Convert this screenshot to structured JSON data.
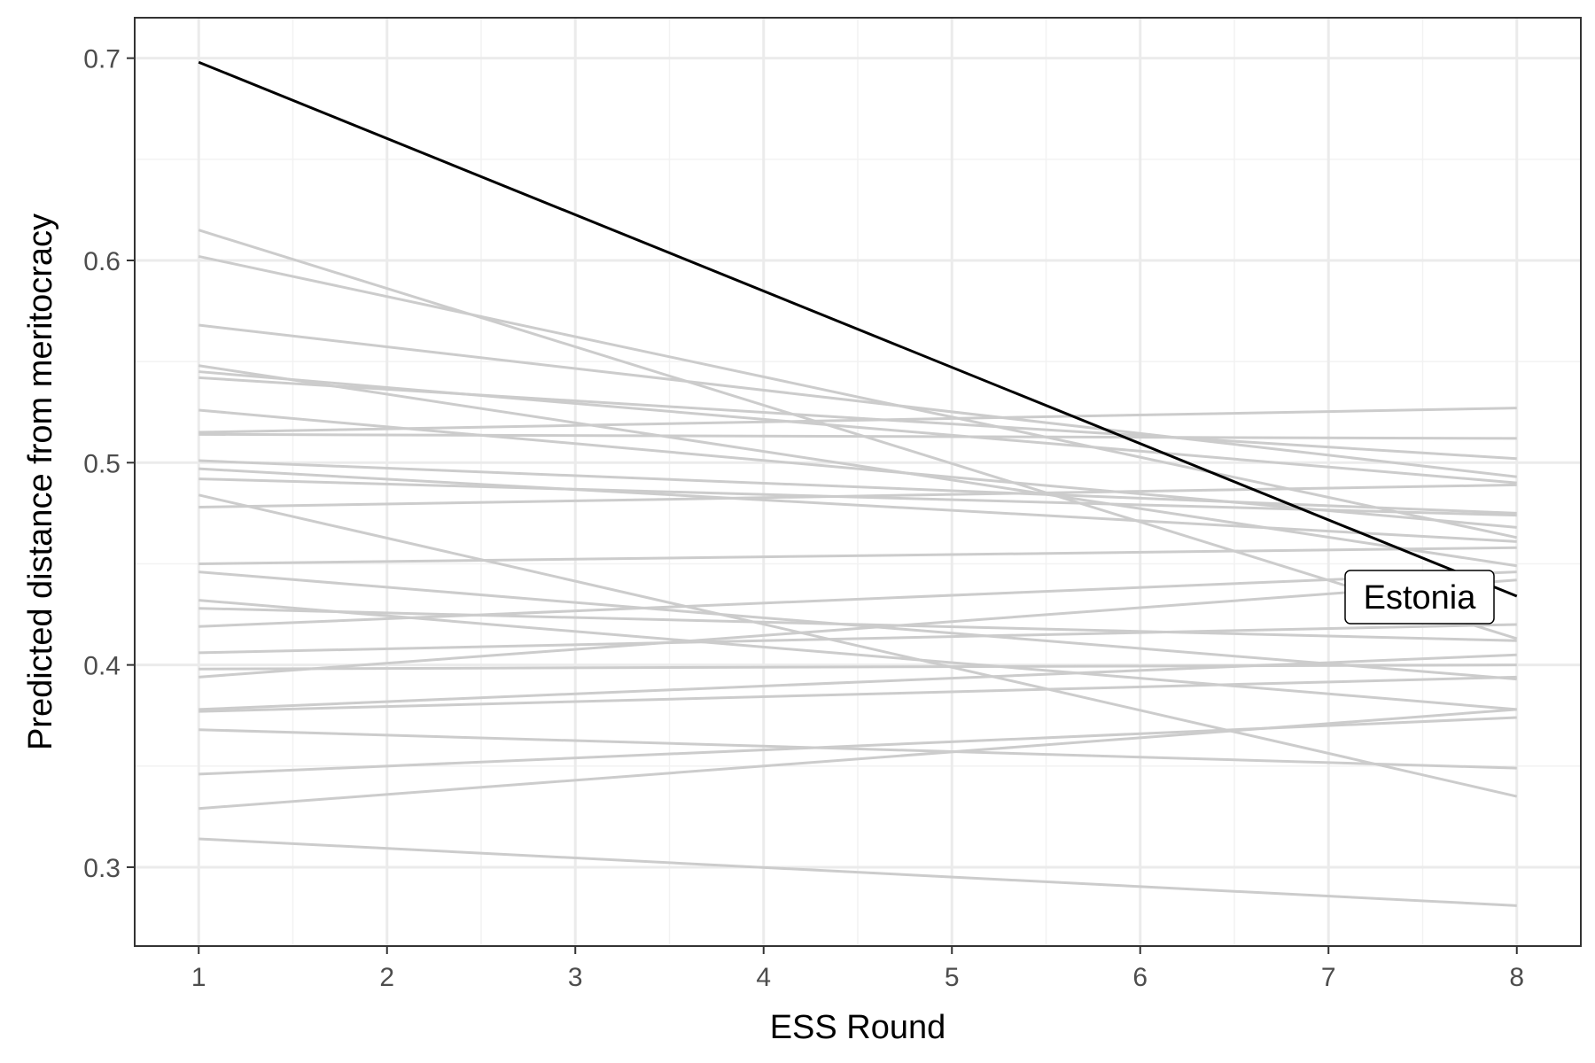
{
  "chart_data": {
    "type": "line",
    "title": "",
    "xlabel": "ESS Round",
    "ylabel": "Predicted distance from meritocracy",
    "xlim": [
      0.66,
      8.34
    ],
    "ylim": [
      0.261,
      0.72
    ],
    "x_ticks": [
      1,
      2,
      3,
      4,
      5,
      6,
      7,
      8
    ],
    "x_tick_labels": [
      "1",
      "2",
      "3",
      "4",
      "5",
      "6",
      "7",
      "8"
    ],
    "y_ticks": [
      0.3,
      0.4,
      0.5,
      0.6,
      0.7
    ],
    "y_tick_labels": [
      "0.3",
      "0.4",
      "0.5",
      "0.6",
      "0.7"
    ],
    "grid": true,
    "highlight_color": "#000000",
    "background_color": "#cccccc",
    "highlight": {
      "name": "Estonia",
      "x": [
        1,
        8
      ],
      "values": [
        0.698,
        0.434
      ]
    },
    "background_series": [
      {
        "x": [
          1,
          8
        ],
        "values": [
          0.615,
          0.413
        ]
      },
      {
        "x": [
          1,
          8
        ],
        "values": [
          0.602,
          0.463
        ]
      },
      {
        "x": [
          1,
          8
        ],
        "values": [
          0.568,
          0.493
        ]
      },
      {
        "x": [
          1,
          8
        ],
        "values": [
          0.548,
          0.449
        ]
      },
      {
        "x": [
          1,
          8
        ],
        "values": [
          0.545,
          0.49
        ]
      },
      {
        "x": [
          1,
          8
        ],
        "values": [
          0.542,
          0.502
        ]
      },
      {
        "x": [
          1,
          8
        ],
        "values": [
          0.526,
          0.468
        ]
      },
      {
        "x": [
          1,
          8
        ],
        "values": [
          0.515,
          0.527
        ]
      },
      {
        "x": [
          1,
          8
        ],
        "values": [
          0.514,
          0.512
        ]
      },
      {
        "x": [
          1,
          8
        ],
        "values": [
          0.501,
          0.475
        ]
      },
      {
        "x": [
          1,
          8
        ],
        "values": [
          0.497,
          0.461
        ]
      },
      {
        "x": [
          1,
          8
        ],
        "values": [
          0.492,
          0.474
        ]
      },
      {
        "x": [
          1,
          8
        ],
        "values": [
          0.478,
          0.489
        ]
      },
      {
        "x": [
          1,
          8
        ],
        "values": [
          0.484,
          0.335
        ]
      },
      {
        "x": [
          1,
          8
        ],
        "values": [
          0.45,
          0.458
        ]
      },
      {
        "x": [
          1,
          8
        ],
        "values": [
          0.446,
          0.393
        ]
      },
      {
        "x": [
          1,
          8
        ],
        "values": [
          0.432,
          0.378
        ]
      },
      {
        "x": [
          1,
          8
        ],
        "values": [
          0.428,
          0.412
        ]
      },
      {
        "x": [
          1,
          8
        ],
        "values": [
          0.419,
          0.446
        ]
      },
      {
        "x": [
          1,
          8
        ],
        "values": [
          0.406,
          0.42
        ]
      },
      {
        "x": [
          1,
          8
        ],
        "values": [
          0.398,
          0.4
        ]
      },
      {
        "x": [
          1,
          8
        ],
        "values": [
          0.394,
          0.442
        ]
      },
      {
        "x": [
          1,
          8
        ],
        "values": [
          0.378,
          0.405
        ]
      },
      {
        "x": [
          1,
          8
        ],
        "values": [
          0.377,
          0.394
        ]
      },
      {
        "x": [
          1,
          8
        ],
        "values": [
          0.368,
          0.349
        ]
      },
      {
        "x": [
          1,
          8
        ],
        "values": [
          0.346,
          0.374
        ]
      },
      {
        "x": [
          1,
          8
        ],
        "values": [
          0.329,
          0.378
        ]
      },
      {
        "x": [
          1,
          8
        ],
        "values": [
          0.314,
          0.281
        ]
      }
    ]
  }
}
